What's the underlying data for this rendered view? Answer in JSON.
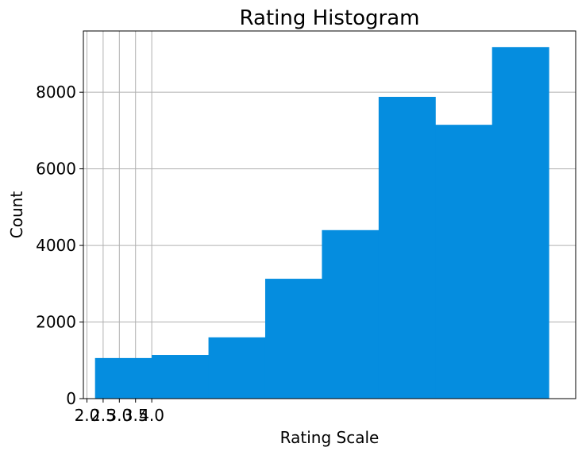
{
  "chart_data": {
    "type": "bar",
    "title": "Rating Histogram",
    "xlabel": "Rating Scale",
    "ylabel": "Count",
    "bar_color": "#058ddf",
    "grid": true,
    "ylim": [
      0,
      9600
    ],
    "xlim": [
      1.89,
      17.08
    ],
    "y_ticks": [
      0,
      2000,
      4000,
      6000,
      8000
    ],
    "y_tick_labels": [
      "0",
      "2000",
      "4000",
      "6000",
      "8000"
    ],
    "x_ticks": [
      2.0,
      2.5,
      3.0,
      3.5,
      4.0
    ],
    "x_tick_labels": [
      "2.0",
      "2.5",
      "3.0",
      "3.5",
      "4.0"
    ],
    "bin_edges": [
      2.25,
      4.0,
      5.75,
      7.5,
      9.25,
      11.0,
      12.75,
      14.5,
      16.25
    ],
    "values": [
      1060,
      1140,
      1600,
      3130,
      4400,
      7880,
      7150,
      9180
    ]
  }
}
